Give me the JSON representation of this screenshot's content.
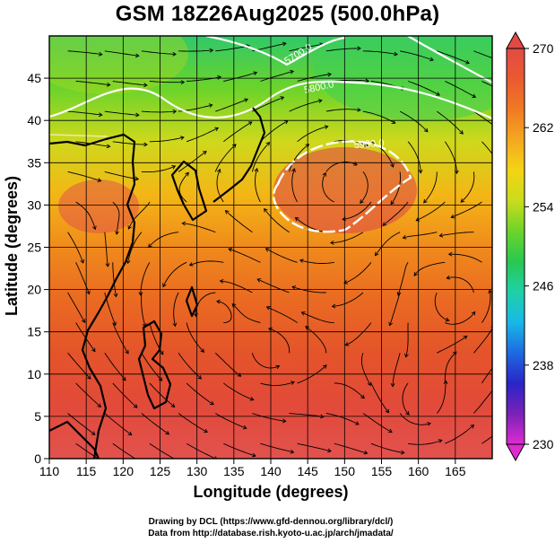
{
  "title": "GSM 18Z26Aug2025 (500.0hPa)",
  "colors": {
    "field_gradient": [
      "#e2524e",
      "#e24a3a",
      "#e4542a",
      "#ea6a22",
      "#f08a1c",
      "#f3b616",
      "#cfd81c",
      "#6cd42a",
      "#30c86a"
    ],
    "contour": "#ffffff",
    "colorbar": [
      "#dd2cd0",
      "#7a22b8",
      "#2a24c8",
      "#1e6ae0",
      "#18b8e8",
      "#20d0a8",
      "#28c850",
      "#6cd42a",
      "#c8dc1c",
      "#f4d414",
      "#f4a820",
      "#f07a24",
      "#ea5a30",
      "#e24a44"
    ]
  },
  "chart_data": {
    "type": "heatmap",
    "variable": "geopotential height / streamlines",
    "title": "GSM 18Z26Aug2025 (500.0hPa)",
    "xlabel": "Longitude (degrees)",
    "ylabel": "Latitude  (degrees)",
    "xlim": [
      110,
      170
    ],
    "ylim": [
      0,
      50
    ],
    "xticks": [
      110,
      115,
      120,
      125,
      130,
      135,
      140,
      145,
      150,
      155,
      160,
      165
    ],
    "yticks": [
      0,
      5,
      10,
      15,
      20,
      25,
      30,
      35,
      40,
      45
    ],
    "colorbar": {
      "min": 230,
      "max": 270,
      "ticks": [
        270,
        262,
        254,
        246,
        238,
        230
      ]
    },
    "contours": [
      {
        "label": "5700.0"
      },
      {
        "label": "5800.0"
      },
      {
        "label": "5900.0"
      }
    ],
    "credits": [
      "Drawing by DCL (https://www.gfd-dennou.org/library/dcl/)",
      "Data from http://database.rish.kyoto-u.ac.jp/arch/jmadata/"
    ]
  }
}
